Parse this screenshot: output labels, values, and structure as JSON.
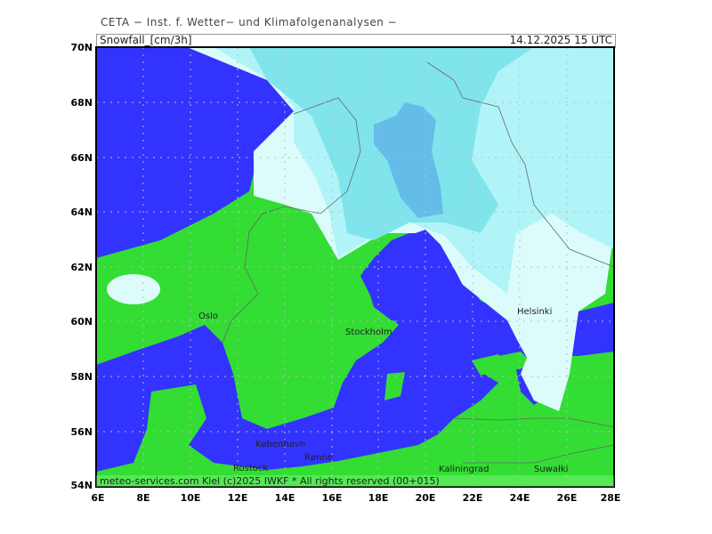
{
  "header": {
    "institute": "CETA − Inst. f. Wetter− und Klimafolgenanalysen −"
  },
  "title": {
    "parameter": "Snowfall_[cm/3h]",
    "valid_time": "14.12.2025  15 UTC"
  },
  "footer": {
    "credit": "meteo-services.com Kiel (c)2025 IWKF * All rights reserved (00+015)"
  },
  "axes": {
    "lat_labels": [
      "70N",
      "68N",
      "66N",
      "64N",
      "62N",
      "60N",
      "58N",
      "56N",
      "54N"
    ],
    "lon_labels": [
      "6E",
      "8E",
      "10E",
      "12E",
      "14E",
      "16E",
      "18E",
      "20E",
      "22E",
      "24E",
      "26E",
      "28E"
    ]
  },
  "cities": [
    "Oslo",
    "Stockholm",
    "Helsinki",
    "København",
    "Rønne",
    "Rostock",
    "Kaliningrad",
    "Suwałki"
  ],
  "colors": {
    "sea": "#3333ff",
    "land": "#33dd33",
    "snow_trace": "#dcfcfc",
    "snow_light": "#b0f4f8",
    "snow_moderate": "#80e4ec",
    "snow_heavy": "#64bce8",
    "grid": "#bbbbbb",
    "border": "#666666"
  }
}
